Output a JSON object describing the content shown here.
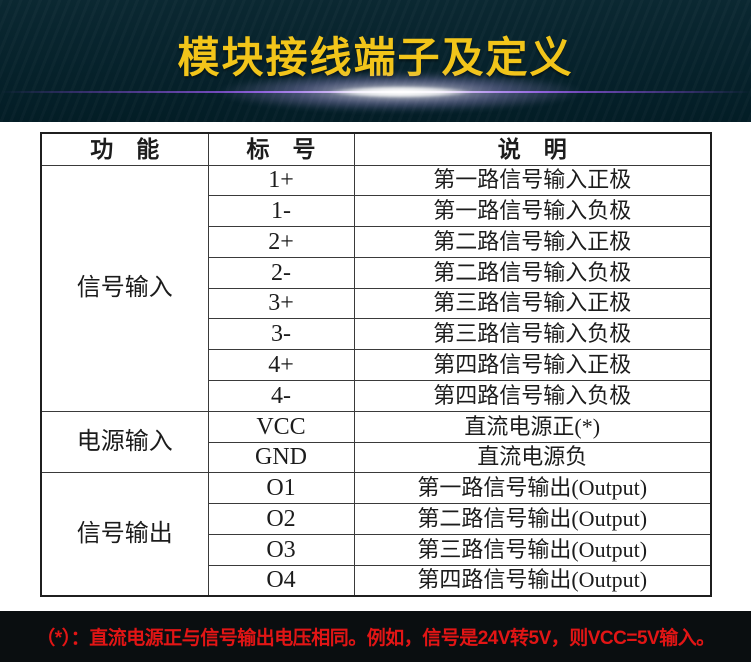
{
  "header": {
    "title": "模块接线端子及定义"
  },
  "table": {
    "columns": [
      "功　能",
      "标　号",
      "说　明"
    ],
    "groups": [
      {
        "function": "信号输入",
        "rows": [
          {
            "label": "1+",
            "desc": "第一路信号输入正极"
          },
          {
            "label": "1-",
            "desc": "第一路信号输入负极"
          },
          {
            "label": "2+",
            "desc": "第二路信号输入正极"
          },
          {
            "label": "2-",
            "desc": "第二路信号输入负极"
          },
          {
            "label": "3+",
            "desc": "第三路信号输入正极"
          },
          {
            "label": "3-",
            "desc": "第三路信号输入负极"
          },
          {
            "label": "4+",
            "desc": "第四路信号输入正极"
          },
          {
            "label": "4-",
            "desc": "第四路信号输入负极"
          }
        ]
      },
      {
        "function": "电源输入",
        "rows": [
          {
            "label": "VCC",
            "desc": "直流电源正(*)"
          },
          {
            "label": "GND",
            "desc": "直流电源负"
          }
        ]
      },
      {
        "function": "信号输出",
        "rows": [
          {
            "label": "O1",
            "desc": "第一路信号输出(Output)"
          },
          {
            "label": "O2",
            "desc": "第二路信号输出(Output)"
          },
          {
            "label": "O3",
            "desc": "第三路信号输出(Output)"
          },
          {
            "label": "O4",
            "desc": "第四路信号输出(Output)"
          }
        ]
      }
    ]
  },
  "footer": {
    "note": "（*）：直流电源正与信号输出电压相同。例如，信号是24V转5V，则VCC=5V输入。"
  },
  "colors": {
    "header_bg": "#03212b",
    "footer_bg": "#0a0e10",
    "title_yellow": "#f2c51a",
    "note_red": "#e21515",
    "table_border": "#3a3a3a"
  }
}
